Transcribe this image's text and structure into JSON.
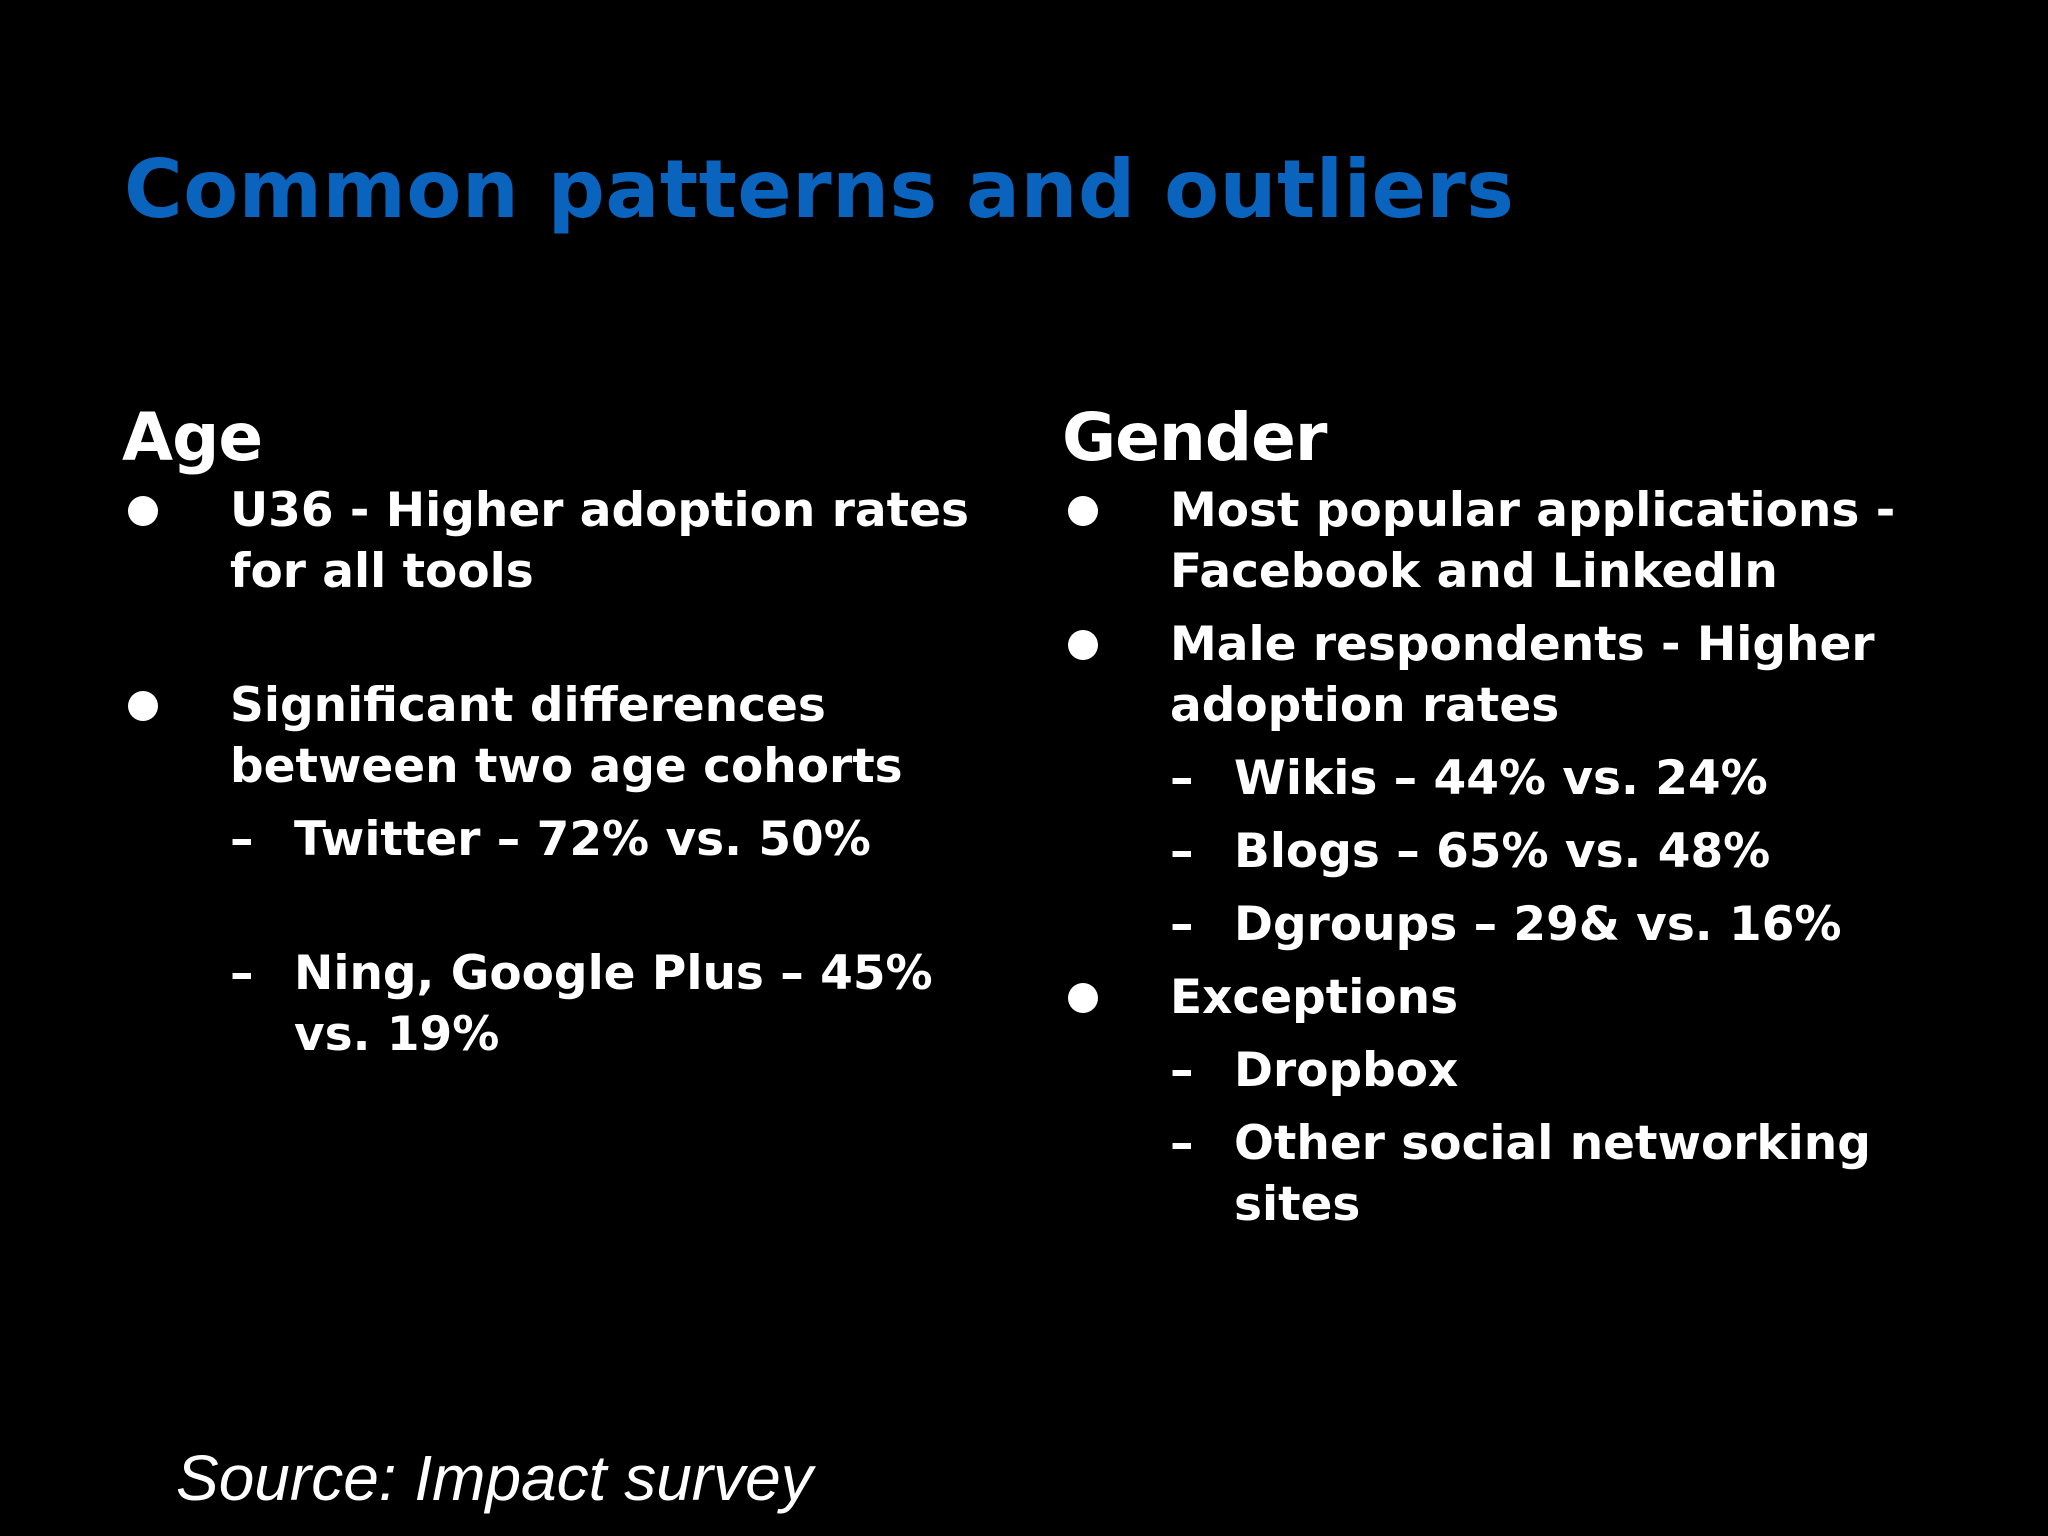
{
  "slide": {
    "title": "Common patterns and outliers",
    "colors": {
      "background": "#000000",
      "title": "#0a64be",
      "text": "#ffffff"
    },
    "left": {
      "heading": "Age",
      "bullets": [
        {
          "text": "U36 - Higher adoption rates for all tools",
          "subitems": []
        },
        {
          "text": "Significant differences between two age cohorts",
          "subitems": [
            "Twitter – 72% vs. 50%",
            "Ning, Google Plus – 45% vs. 19%"
          ]
        }
      ]
    },
    "right": {
      "heading": "Gender",
      "bullets": [
        {
          "text": "Most popular applications - Facebook and LinkedIn",
          "subitems": []
        },
        {
          "text": "Male respondents - Higher adoption rates",
          "subitems": [
            "Wikis – 44% vs. 24%",
            "Blogs – 65% vs. 48%",
            "Dgroups – 29& vs. 16%"
          ]
        },
        {
          "text": "Exceptions",
          "subitems": [
            "Dropbox",
            "Other social networking sites"
          ]
        }
      ]
    },
    "source": "Source: Impact survey",
    "dash_symbol": "–"
  }
}
